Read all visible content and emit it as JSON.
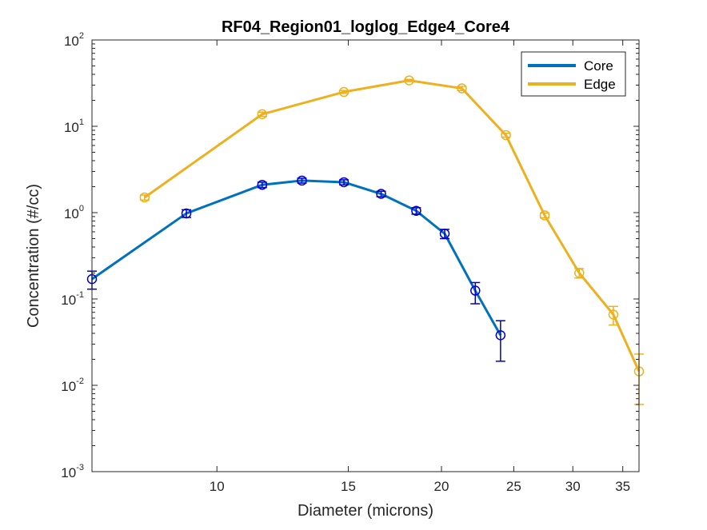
{
  "chart_data": {
    "type": "line",
    "title": "RF04_Region01_loglog_Edge4_Core4",
    "xlabel": "Diameter (microns)",
    "ylabel": "Concentration (#/cc)",
    "xscale": "log",
    "yscale": "log",
    "xlim": [
      6.8,
      36.8
    ],
    "ylim": [
      0.001,
      100
    ],
    "xticks": [
      10,
      15,
      20,
      25,
      30,
      35
    ],
    "yticks": [
      {
        "base": "10",
        "exp": "-3",
        "value": 0.001
      },
      {
        "base": "10",
        "exp": "-2",
        "value": 0.01
      },
      {
        "base": "10",
        "exp": "-1",
        "value": 0.1
      },
      {
        "base": "10",
        "exp": "0",
        "value": 1
      },
      {
        "base": "10",
        "exp": "1",
        "value": 10
      },
      {
        "base": "10",
        "exp": "2",
        "value": 100
      }
    ],
    "grid": false,
    "legend_position": "top-right",
    "series": [
      {
        "name": "Core",
        "color": "#0072BD",
        "marker_color": "#0000CC",
        "x": [
          6.8,
          9.1,
          11.5,
          13.0,
          14.8,
          16.6,
          18.5,
          20.2,
          22.2,
          24.0
        ],
        "y": [
          0.17,
          0.98,
          2.1,
          2.35,
          2.25,
          1.65,
          1.05,
          0.57,
          0.125,
          0.038
        ],
        "err_low": [
          0.13,
          0.88,
          1.95,
          2.2,
          2.1,
          1.53,
          0.96,
          0.5,
          0.088,
          0.019
        ],
        "err_high": [
          0.21,
          1.08,
          2.25,
          2.5,
          2.4,
          1.77,
          1.14,
          0.64,
          0.155,
          0.056
        ]
      },
      {
        "name": "Edge",
        "color": "#EDB120",
        "marker_color": "#EDB120",
        "x": [
          8.0,
          11.5,
          14.8,
          18.1,
          21.3,
          24.4,
          27.5,
          30.6,
          34.0,
          36.8
        ],
        "y": [
          1.5,
          13.8,
          25.0,
          34.0,
          27.5,
          7.9,
          0.93,
          0.2,
          0.066,
          0.0145
        ],
        "err_low": [
          1.4,
          13.0,
          24.0,
          33.0,
          26.0,
          7.5,
          0.87,
          0.175,
          0.05,
          0.006
        ],
        "err_high": [
          1.6,
          14.6,
          26.0,
          35.0,
          29.0,
          8.3,
          0.99,
          0.225,
          0.082,
          0.023
        ]
      }
    ]
  }
}
